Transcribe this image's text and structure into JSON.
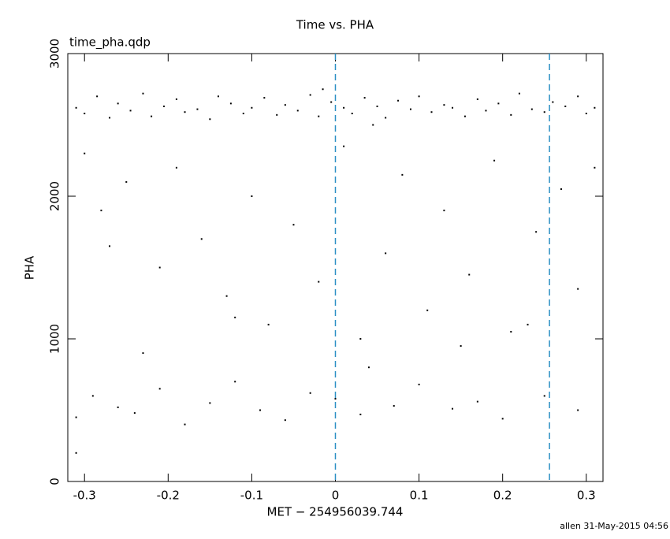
{
  "chart_data": {
    "type": "scatter",
    "title": "Time vs. PHA",
    "subtitle": "time_pha.qdp",
    "xlabel": "MET − 254956039.744",
    "ylabel": "PHA",
    "footer": "allen 31-May-2015 04:56",
    "color": "#000000",
    "vline_color": "#2a8fc4",
    "xlim": [
      -0.32,
      0.32
    ],
    "xticks": [
      -0.3,
      -0.2,
      -0.1,
      0,
      0.1,
      0.2,
      0.3
    ],
    "ylim": [
      0,
      3000
    ],
    "yticks": [
      0,
      1000,
      2000,
      3000
    ],
    "vlines": [
      0,
      0.256
    ],
    "x": [
      -0.31,
      -0.3,
      -0.285,
      -0.27,
      -0.26,
      -0.245,
      -0.23,
      -0.22,
      -0.205,
      -0.19,
      -0.18,
      -0.165,
      -0.15,
      -0.14,
      -0.125,
      -0.11,
      -0.1,
      -0.085,
      -0.07,
      -0.06,
      -0.045,
      -0.03,
      -0.02,
      -0.005,
      0.01,
      0.02,
      0.035,
      0.05,
      0.06,
      0.075,
      0.09,
      0.1,
      0.115,
      0.13,
      0.14,
      0.155,
      0.17,
      0.18,
      0.195,
      0.21,
      0.22,
      0.235,
      0.25,
      0.26,
      0.275,
      0.29,
      0.3,
      0.31,
      -0.015,
      0.045,
      -0.3,
      -0.28,
      -0.25,
      -0.21,
      -0.19,
      -0.16,
      -0.13,
      -0.1,
      -0.08,
      -0.05,
      -0.02,
      0.01,
      0.03,
      0.06,
      0.08,
      0.11,
      0.13,
      0.16,
      0.19,
      0.21,
      0.24,
      0.27,
      0.29,
      0.31,
      -0.23,
      -0.12,
      0.04,
      0.15,
      0.23,
      -0.27,
      -0.31,
      -0.29,
      -0.26,
      -0.24,
      -0.21,
      -0.18,
      -0.15,
      -0.12,
      -0.09,
      -0.06,
      -0.03,
      0.0,
      0.03,
      0.07,
      0.1,
      0.14,
      0.17,
      0.2,
      0.25,
      0.29,
      -0.31
    ],
    "y": [
      2620,
      2580,
      2700,
      2550,
      2650,
      2600,
      2720,
      2560,
      2630,
      2680,
      2590,
      2610,
      2540,
      2700,
      2650,
      2580,
      2620,
      2690,
      2570,
      2640,
      2600,
      2710,
      2560,
      2660,
      2620,
      2580,
      2690,
      2630,
      2550,
      2670,
      2610,
      2700,
      2590,
      2640,
      2620,
      2560,
      2680,
      2600,
      2650,
      2570,
      2720,
      2610,
      2590,
      2660,
      2630,
      2700,
      2580,
      2620,
      2750,
      2500,
      2300,
      1900,
      2100,
      1500,
      2200,
      1700,
      1300,
      2000,
      1100,
      1800,
      1400,
      2350,
      1000,
      1600,
      2150,
      1200,
      1900,
      1450,
      2250,
      1050,
      1750,
      2050,
      1350,
      2200,
      900,
      1150,
      800,
      950,
      1100,
      1650,
      450,
      600,
      520,
      480,
      650,
      400,
      550,
      700,
      500,
      430,
      620,
      580,
      470,
      530,
      680,
      510,
      560,
      440,
      600,
      500,
      200
    ]
  }
}
